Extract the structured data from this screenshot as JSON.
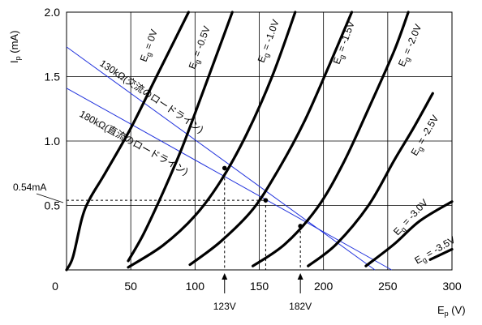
{
  "chart_data": {
    "type": "line",
    "title": "",
    "xlabel": "E",
    "xlabel_sub": "p",
    "xlabel_unit": "(V)",
    "ylabel": "I",
    "ylabel_sub": "p",
    "ylabel_unit": "(mA)",
    "xlim": [
      0,
      300
    ],
    "ylim": [
      0,
      2.0
    ],
    "x_ticks": [
      0,
      50,
      100,
      150,
      200,
      250,
      300
    ],
    "x_tick_labels": [
      "0",
      "50",
      "100",
      "150",
      "200",
      "250",
      "300"
    ],
    "y_ticks": [
      0.5,
      1.0,
      1.5,
      2.0
    ],
    "y_tick_labels": [
      "0.5",
      "1.0",
      "1.5",
      "2.0"
    ],
    "grid": true,
    "series": [
      {
        "name": "Eg = 0V",
        "label_main": "E",
        "label_sub": "g",
        "label_rest": " = 0V",
        "points": [
          [
            0,
            0
          ],
          [
            5,
            0.1
          ],
          [
            12,
            0.4
          ],
          [
            18,
            0.55
          ],
          [
            30,
            0.75
          ],
          [
            50,
            1.1
          ],
          [
            70,
            1.5
          ],
          [
            95,
            2.0
          ]
        ]
      },
      {
        "name": "Eg = -0.5V",
        "label_main": "E",
        "label_sub": "g",
        "label_rest": " = -0.5V",
        "points": [
          [
            48,
            0.07
          ],
          [
            60,
            0.28
          ],
          [
            75,
            0.6
          ],
          [
            90,
            0.95
          ],
          [
            105,
            1.35
          ],
          [
            118,
            1.7
          ],
          [
            129,
            2.0
          ]
        ]
      },
      {
        "name": "Eg = -1.0V",
        "label_main": "E",
        "label_sub": "g",
        "label_rest": " = -1.0V",
        "points": [
          [
            48,
            0.02
          ],
          [
            75,
            0.19
          ],
          [
            100,
            0.42
          ],
          [
            120,
            0.69
          ],
          [
            140,
            1.05
          ],
          [
            160,
            1.5
          ],
          [
            178,
            2.0
          ]
        ]
      },
      {
        "name": "Eg = -1.5V",
        "label_main": "E",
        "label_sub": "g",
        "label_rest": " = -1.5V",
        "points": [
          [
            96,
            0.04
          ],
          [
            120,
            0.22
          ],
          [
            145,
            0.47
          ],
          [
            165,
            0.78
          ],
          [
            185,
            1.15
          ],
          [
            205,
            1.6
          ],
          [
            222,
            2.0
          ]
        ]
      },
      {
        "name": "Eg = -2.0V",
        "label_main": "E",
        "label_sub": "g",
        "label_rest": " = -2.0V",
        "points": [
          [
            145,
            0.03
          ],
          [
            170,
            0.2
          ],
          [
            195,
            0.48
          ],
          [
            215,
            0.82
          ],
          [
            235,
            1.25
          ],
          [
            255,
            1.7
          ],
          [
            266,
            2.0
          ]
        ]
      },
      {
        "name": "Eg = -2.5V",
        "label_main": "E",
        "label_sub": "g",
        "label_rest": " = -2.5V",
        "points": [
          [
            188,
            0.03
          ],
          [
            210,
            0.2
          ],
          [
            235,
            0.5
          ],
          [
            255,
            0.85
          ],
          [
            270,
            1.1
          ],
          [
            285,
            1.37
          ]
        ]
      },
      {
        "name": "Eg = -3.0V",
        "label_main": "E",
        "label_sub": "g",
        "label_rest": " = -3.0V",
        "points": [
          [
            233,
            0.03
          ],
          [
            255,
            0.2
          ],
          [
            275,
            0.38
          ],
          [
            300,
            0.53
          ]
        ]
      },
      {
        "name": "Eg = -3.5V",
        "label_main": "E",
        "label_sub": "g",
        "label_rest": " = -3.5V",
        "points": [
          [
            283,
            0.08
          ],
          [
            300,
            0.16
          ]
        ]
      }
    ],
    "load_lines": [
      {
        "name": "130kΩ(交流のロードライン)",
        "points": [
          [
            0,
            1.73
          ],
          [
            240,
            0
          ]
        ]
      },
      {
        "name": "180kΩ(直流のロードライン)",
        "points": [
          [
            0,
            1.41
          ],
          [
            253,
            0
          ]
        ]
      }
    ],
    "operating_points": [
      {
        "x": 123,
        "y": 0.79
      },
      {
        "x": 155,
        "y": 0.54
      },
      {
        "x": 182,
        "y": 0.34
      }
    ],
    "annotations": {
      "current_label": "0.54mA",
      "current_value": 0.54,
      "v1_label": "123V",
      "v1_value": 123,
      "v2_label": "182V",
      "v2_value": 182,
      "dc_guide_x": 155
    }
  }
}
